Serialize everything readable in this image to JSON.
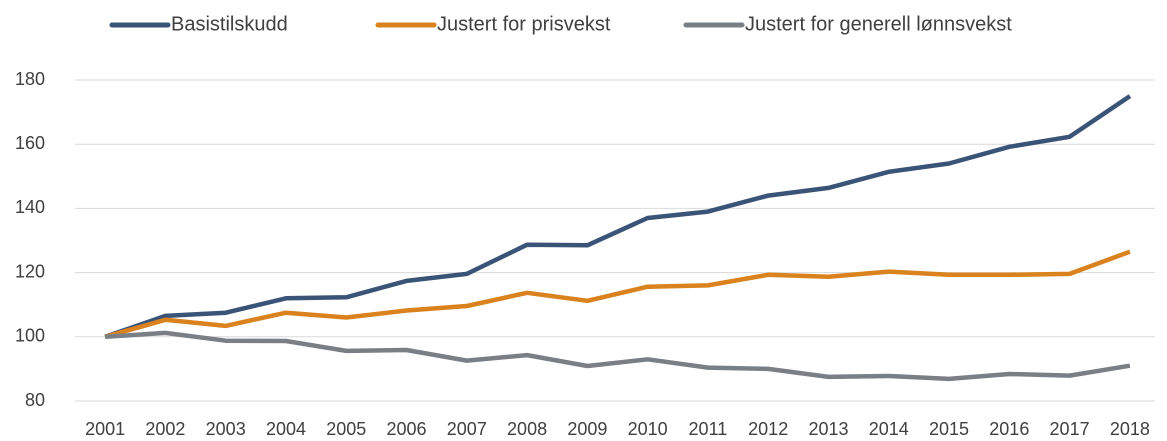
{
  "chart_data": {
    "type": "line",
    "categories": [
      "2001",
      "2002",
      "2003",
      "2004",
      "2005",
      "2006",
      "2007",
      "2008",
      "2009",
      "2010",
      "2011",
      "2012",
      "2013",
      "2014",
      "2015",
      "2016",
      "2017",
      "2018"
    ],
    "series": [
      {
        "name": "Basistilskudd",
        "color": "#3a5478",
        "values": [
          100,
          106.5,
          107.5,
          112,
          112.3,
          117.4,
          119.6,
          128.7,
          128.5,
          137,
          139,
          144,
          146.4,
          151.4,
          154,
          159.2,
          162.3,
          175
        ]
      },
      {
        "name": "Justert for prisvekst",
        "color": "#d9821e",
        "values": [
          100,
          105.3,
          103.4,
          107.5,
          106,
          108.2,
          109.6,
          113.7,
          111.2,
          115.6,
          116,
          119.3,
          118.7,
          120.3,
          119.3,
          119.3,
          119.6,
          126.5
        ]
      },
      {
        "name": "Justert for generell lønnsvekst",
        "color": "#7a7f85",
        "values": [
          100,
          101.2,
          98.8,
          98.7,
          95.6,
          95.9,
          92.6,
          94.3,
          90.9,
          93,
          90.4,
          90,
          87.5,
          87.8,
          86.9,
          88.4,
          87.9,
          91
        ]
      }
    ],
    "ylim": [
      80,
      180
    ],
    "yticks": [
      80,
      100,
      120,
      140,
      160,
      180
    ],
    "grid": true,
    "legend": "top"
  }
}
